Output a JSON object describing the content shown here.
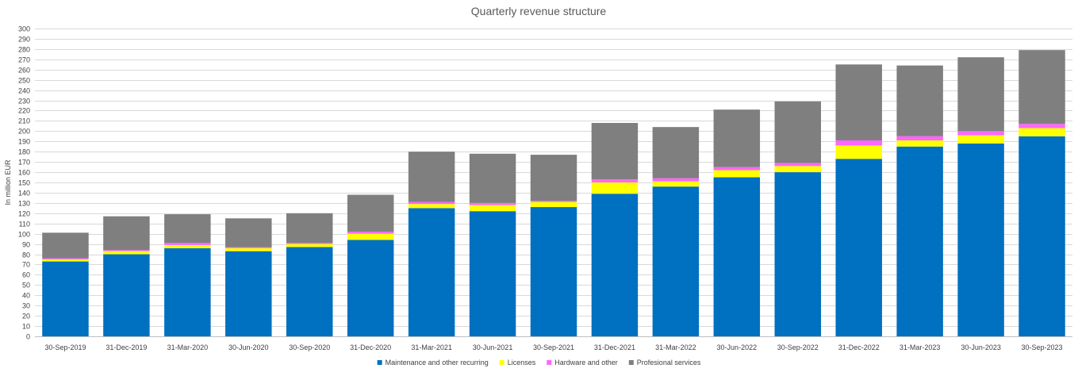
{
  "chart_data": {
    "type": "bar",
    "stacked": true,
    "title": "Quarterly revenue structure",
    "ylabel": "In million EUR",
    "xlabel": "",
    "ylim": [
      0,
      300
    ],
    "ytick_step": 10,
    "grid": true,
    "legend_position": "bottom",
    "categories": [
      "30-Sep-2019",
      "31-Dec-2019",
      "31-Mar-2020",
      "30-Jun-2020",
      "30-Sep-2020",
      "31-Dec-2020",
      "31-Mar-2021",
      "30-Jun-2021",
      "30-Sep-2021",
      "31-Dec-2021",
      "31-Mar-2022",
      "30-Jun-2022",
      "30-Sep-2022",
      "31-Dec-2022",
      "31-Mar-2023",
      "30-Jun-2023",
      "30-Sep-2023"
    ],
    "series": [
      {
        "name": "Maintenance and other recurring",
        "color": "#0070c0",
        "values": [
          73,
          80,
          86,
          83,
          87,
          94,
          125,
          122,
          126,
          139,
          146,
          155,
          160,
          173,
          185,
          188,
          195
        ]
      },
      {
        "name": "Licenses",
        "color": "#ffff00",
        "values": [
          2,
          3,
          3,
          3,
          3,
          6,
          4,
          6,
          5,
          11,
          5,
          7,
          6,
          13,
          6,
          8,
          8
        ]
      },
      {
        "name": "Hardware and other",
        "color": "#ff66ff",
        "values": [
          1,
          1,
          2,
          1,
          1,
          2,
          2,
          2,
          1,
          3,
          3,
          3,
          3,
          5,
          4,
          4,
          4
        ]
      },
      {
        "name": "Profesional services",
        "color": "#7f7f7f",
        "values": [
          25,
          33,
          28,
          28,
          29,
          36,
          49,
          48,
          45,
          55,
          50,
          56,
          60,
          74,
          69,
          72,
          72
        ]
      }
    ]
  }
}
